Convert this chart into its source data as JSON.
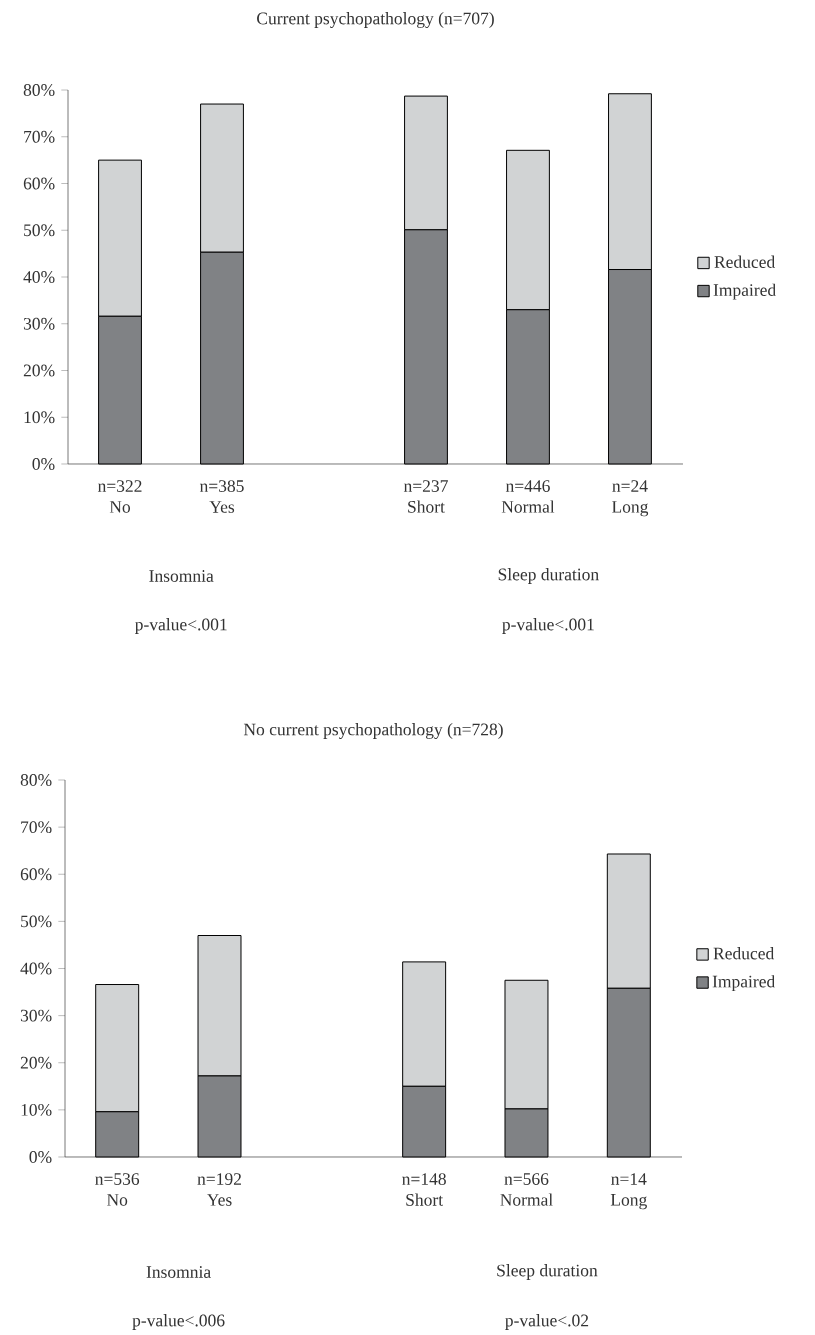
{
  "chart_data": [
    {
      "type": "bar",
      "stacked": true,
      "title": "Current psychopathology (n=707)",
      "categories": [
        "n=322 No",
        "n=385 Yes",
        null,
        "n=237 Short",
        "n=446 Normal",
        "n=24 Long"
      ],
      "series": [
        {
          "name": "Impaired",
          "color": "#808285",
          "values": [
            31.6,
            45.3,
            null,
            50.1,
            33.0,
            41.6
          ]
        },
        {
          "name": "Reduced",
          "color": "#d1d3d4",
          "values": [
            33.4,
            31.7,
            null,
            28.6,
            34.1,
            37.6
          ]
        }
      ],
      "ylim": [
        0,
        80
      ],
      "yticks": [
        {
          "value": 0,
          "label": "0%"
        },
        {
          "value": 10,
          "label": "10%"
        },
        {
          "value": 20,
          "label": "20%"
        },
        {
          "value": 30,
          "label": "30%"
        },
        {
          "value": 40,
          "label": "40%"
        },
        {
          "value": 50,
          "label": "50%"
        },
        {
          "value": 60,
          "label": "60%"
        },
        {
          "value": 70,
          "label": "70%"
        },
        {
          "value": 80,
          "label": "80%"
        }
      ],
      "legend": "right",
      "annotations": [
        "Insomnia",
        "Sleep duration",
        "p-value<.001",
        "p-value<.001"
      ]
    },
    {
      "type": "bar",
      "stacked": true,
      "title": "No current psychopathology (n=728)",
      "categories": [
        "n=536 No",
        "n=192 Yes",
        null,
        "n=148 Short",
        "n=566 Normal",
        "n=14 Long"
      ],
      "series": [
        {
          "name": "Impaired",
          "color": "#808285",
          "values": [
            9.6,
            17.2,
            null,
            15.0,
            10.2,
            35.8
          ]
        },
        {
          "name": "Reduced",
          "color": "#d1d3d4",
          "values": [
            27.0,
            29.8,
            null,
            26.4,
            27.3,
            28.5
          ]
        }
      ],
      "ylim": [
        0,
        80
      ],
      "yticks": [
        {
          "value": 0,
          "label": "0%"
        },
        {
          "value": 10,
          "label": "10%"
        },
        {
          "value": 20,
          "label": "20%"
        },
        {
          "value": 30,
          "label": "30%"
        },
        {
          "value": 40,
          "label": "40%"
        },
        {
          "value": 50,
          "label": "50%"
        },
        {
          "value": 60,
          "label": "60%"
        },
        {
          "value": 70,
          "label": "70%"
        },
        {
          "value": 80,
          "label": "80%"
        }
      ],
      "legend": "right",
      "annotations": [
        "Insomnia",
        "Sleep duration",
        "p-value<.006",
        "p-value<.02"
      ]
    }
  ]
}
